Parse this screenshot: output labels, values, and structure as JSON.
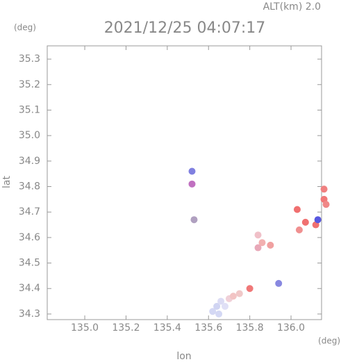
{
  "chart_data": {
    "type": "scatter",
    "title": "2021/12/25 04:07:17",
    "annotation": "ALT(km) 2.0",
    "y_unit": "(deg)",
    "x_unit": "(deg)",
    "xlabel": "lon",
    "ylabel": "lat",
    "xlim": [
      134.818,
      136.148
    ],
    "ylim": [
      34.278,
      35.352
    ],
    "xticks": [
      {
        "value": 135,
        "label": "135.0"
      },
      135.2,
      135.4,
      135.6,
      135.8,
      {
        "value": 136,
        "label": "136.0"
      }
    ],
    "yticks": [
      34.3,
      34.4,
      34.5,
      34.6,
      34.7,
      34.8,
      34.9,
      {
        "value": 35,
        "label": "35.0"
      },
      35.1,
      35.2,
      35.3
    ],
    "x": [
      135.52,
      135.52,
      135.53,
      135.62,
      135.64,
      135.66,
      135.68,
      135.65,
      135.7,
      135.72,
      135.75,
      135.8,
      135.84,
      135.86,
      135.9,
      135.94,
      136.03,
      136.07,
      136.12,
      136.13,
      136.16,
      136.16,
      136.17,
      136.04,
      135.84
    ],
    "y": [
      34.81,
      34.86,
      34.67,
      34.31,
      34.33,
      34.35,
      34.33,
      34.3,
      34.36,
      34.37,
      34.38,
      34.4,
      34.56,
      34.58,
      34.57,
      34.42,
      34.71,
      34.66,
      34.65,
      34.67,
      34.79,
      34.75,
      34.73,
      34.63,
      34.61
    ],
    "colors": [
      "#c070c0",
      "#8080e0",
      "#b0a0c0",
      "#d4d8f4",
      "#d0d4f2",
      "#dcdcf4",
      "#e0e0f6",
      "#d4d8f4",
      "#f0d0d8",
      "#f2c4c4",
      "#f0c8c8",
      "#f07878",
      "#e8a8b8",
      "#f2b0b0",
      "#f0a0a0",
      "#8888e0",
      "#f07070",
      "#f07070",
      "#f07070",
      "#5858e0",
      "#f08080",
      "#f07878",
      "#f08888",
      "#f09090",
      "#f0c0c8"
    ]
  }
}
